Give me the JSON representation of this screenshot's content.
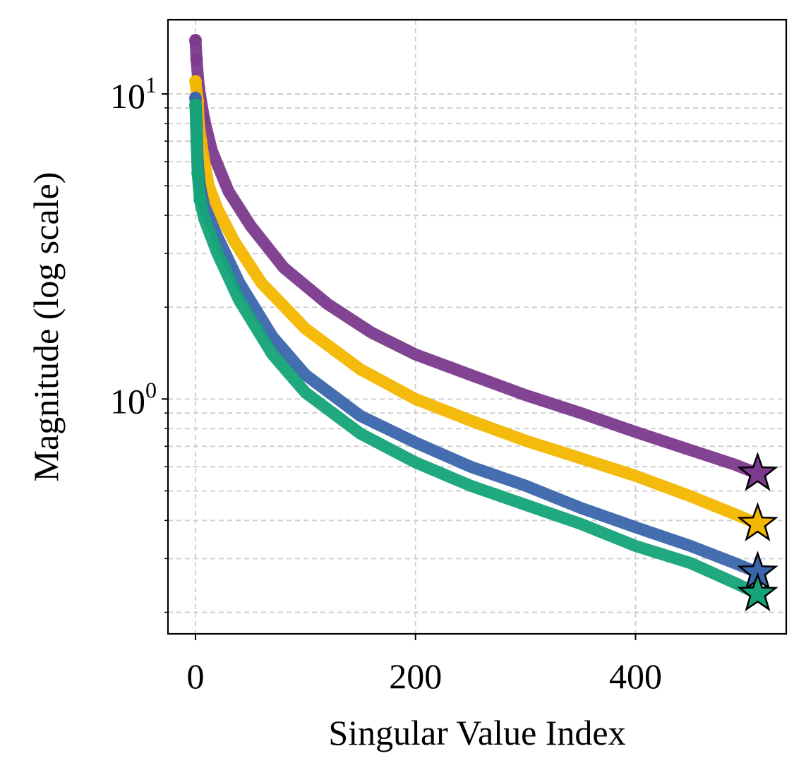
{
  "chart_data": {
    "type": "line",
    "title": "",
    "xlabel": "Singular Value Index",
    "ylabel": "Magnitude (log scale)",
    "yscale": "log",
    "xlim": [
      -25,
      537
    ],
    "ylim": [
      0.17,
      17.5
    ],
    "x_ticks": [
      0,
      200,
      400
    ],
    "x_tick_labels": [
      "0",
      "200",
      "400"
    ],
    "y_ticks": [
      1,
      10
    ],
    "y_tick_labels": [
      {
        "base": "10",
        "exp": "0"
      },
      {
        "base": "10",
        "exp": "1"
      }
    ],
    "grid": true,
    "end_marker": "star",
    "series": [
      {
        "name": "purple",
        "color": "#7b3a8c",
        "points": [
          [
            0,
            15
          ],
          [
            1,
            13
          ],
          [
            3,
            10.5
          ],
          [
            8,
            8.2
          ],
          [
            15,
            6.5
          ],
          [
            30,
            4.8
          ],
          [
            50,
            3.7
          ],
          [
            80,
            2.7
          ],
          [
            120,
            2.05
          ],
          [
            160,
            1.65
          ],
          [
            200,
            1.4
          ],
          [
            250,
            1.2
          ],
          [
            300,
            1.03
          ],
          [
            350,
            0.9
          ],
          [
            400,
            0.78
          ],
          [
            450,
            0.68
          ],
          [
            490,
            0.61
          ],
          [
            511,
            0.57
          ]
        ]
      },
      {
        "name": "yellow",
        "color": "#f3b700",
        "points": [
          [
            0,
            11
          ],
          [
            2,
            9.5
          ],
          [
            3,
            8
          ],
          [
            5,
            7
          ],
          [
            8,
            6
          ],
          [
            12,
            5
          ],
          [
            20,
            4.2
          ],
          [
            35,
            3.3
          ],
          [
            60,
            2.4
          ],
          [
            100,
            1.7
          ],
          [
            150,
            1.25
          ],
          [
            200,
            1.0
          ],
          [
            250,
            0.85
          ],
          [
            300,
            0.73
          ],
          [
            350,
            0.64
          ],
          [
            400,
            0.56
          ],
          [
            450,
            0.48
          ],
          [
            490,
            0.42
          ],
          [
            511,
            0.39
          ]
        ]
      },
      {
        "name": "blue",
        "color": "#3a66ab",
        "points": [
          [
            0,
            9.7
          ],
          [
            1,
            8
          ],
          [
            2,
            6
          ],
          [
            4,
            5
          ],
          [
            8,
            4.3
          ],
          [
            20,
            3.4
          ],
          [
            40,
            2.4
          ],
          [
            70,
            1.6
          ],
          [
            100,
            1.2
          ],
          [
            150,
            0.88
          ],
          [
            200,
            0.72
          ],
          [
            250,
            0.6
          ],
          [
            300,
            0.52
          ],
          [
            350,
            0.44
          ],
          [
            400,
            0.38
          ],
          [
            450,
            0.33
          ],
          [
            490,
            0.29
          ],
          [
            511,
            0.27
          ]
        ]
      },
      {
        "name": "green",
        "color": "#14a478",
        "points": [
          [
            0,
            9.2
          ],
          [
            1,
            7
          ],
          [
            2,
            5.5
          ],
          [
            4,
            4.5
          ],
          [
            8,
            3.9
          ],
          [
            20,
            3.0
          ],
          [
            40,
            2.1
          ],
          [
            70,
            1.4
          ],
          [
            100,
            1.05
          ],
          [
            150,
            0.77
          ],
          [
            200,
            0.62
          ],
          [
            250,
            0.52
          ],
          [
            300,
            0.45
          ],
          [
            350,
            0.39
          ],
          [
            400,
            0.33
          ],
          [
            450,
            0.29
          ],
          [
            490,
            0.25
          ],
          [
            511,
            0.23
          ]
        ]
      }
    ]
  }
}
